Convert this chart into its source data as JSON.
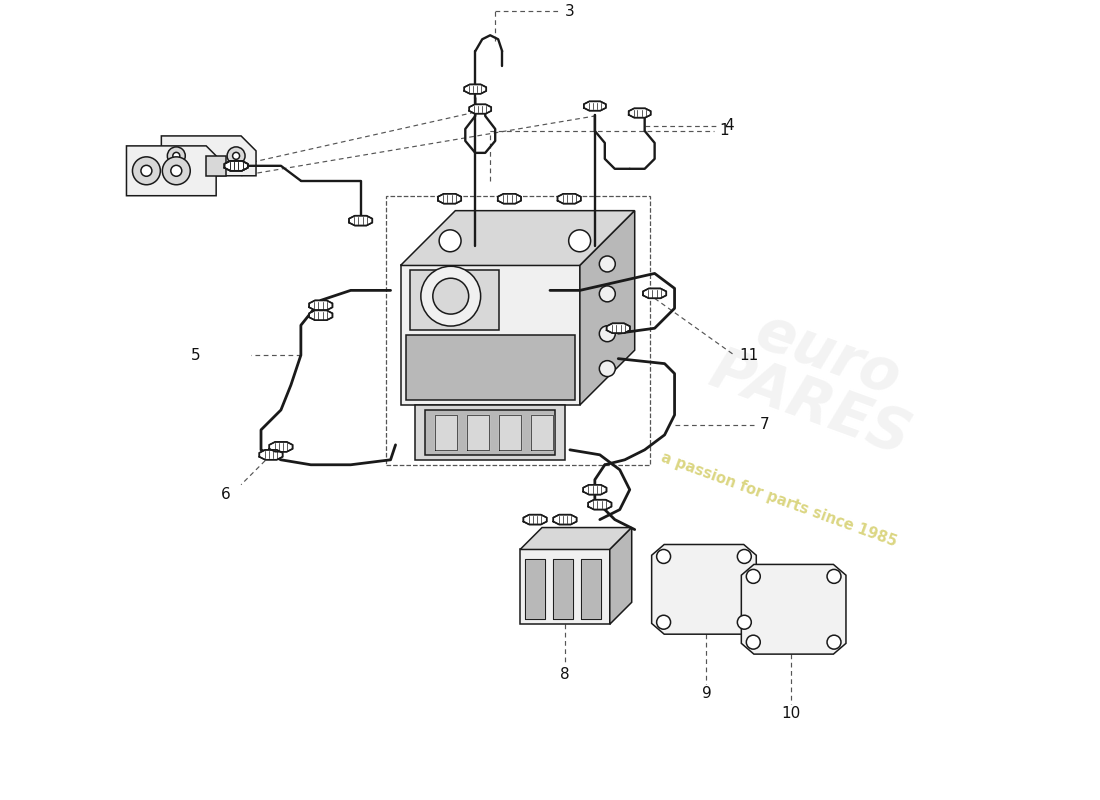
{
  "bg_color": "#ffffff",
  "line_color": "#1a1a1a",
  "dashed_color": "#555555",
  "label_color": "#111111",
  "fill_light": "#f0f0f0",
  "fill_medium": "#d8d8d8",
  "fill_dark": "#b8b8b8",
  "watermark_text": "euroPARES",
  "watermark_sub": "a passion for parts since 1985",
  "watermark_color": "#d4d4d4",
  "watermark_sub_color": "#c8c040",
  "lw_main": 1.7,
  "lw_thin": 1.1,
  "label_fontsize": 11
}
